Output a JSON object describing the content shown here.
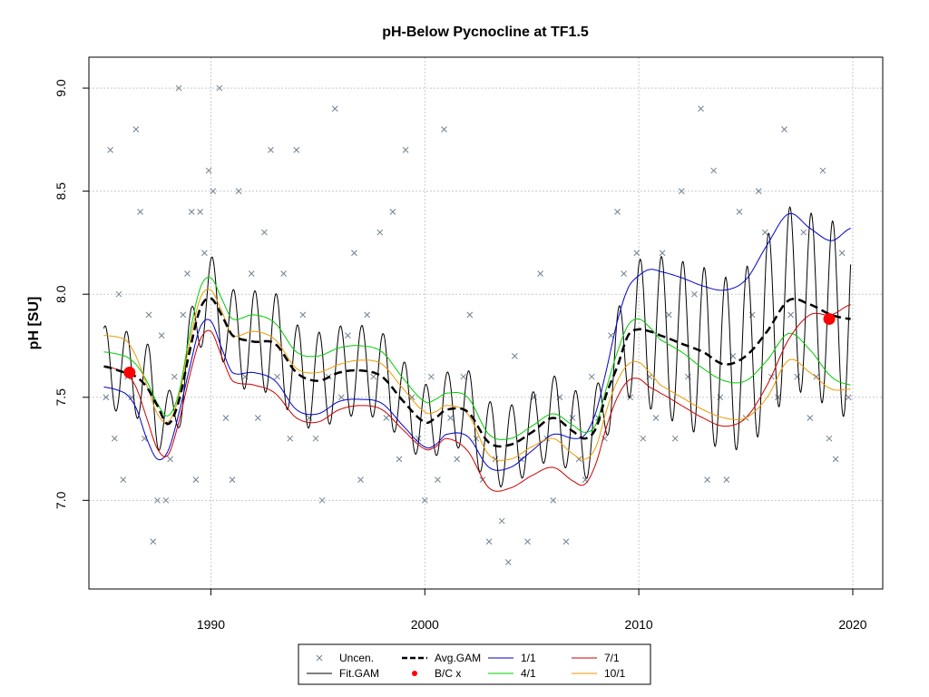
{
  "chart_data": {
    "type": "line",
    "title": "pH-Below Pycnocline at TF1.5",
    "xlabel": "",
    "ylabel": "pH [SU]",
    "xlim": [
      1984.3,
      2021.4
    ],
    "ylim": [
      6.57,
      9.15
    ],
    "x_ticks": [
      1990,
      2000,
      2010,
      2020
    ],
    "y_ticks": [
      7.0,
      7.5,
      8.0,
      8.5,
      9.0
    ],
    "x_tick_labels": [
      "1990",
      "2000",
      "2010",
      "2020"
    ],
    "y_tick_labels": [
      "7.0",
      "7.5",
      "8.0",
      "8.5",
      "9.0"
    ],
    "grid": true,
    "legend_position": "bottom-center",
    "legend": [
      {
        "label": "Uncen.",
        "symbol": "x",
        "color": "#708090"
      },
      {
        "label": "Fit.GAM",
        "symbol": "line",
        "color": "#000000"
      },
      {
        "label": "Avg.GAM",
        "symbol": "dashed",
        "color": "#000000"
      },
      {
        "label": "B/C x",
        "symbol": "point",
        "color": "#ff0000"
      },
      {
        "label": "1/1",
        "symbol": "line",
        "color": "#0000cd"
      },
      {
        "label": "4/1",
        "symbol": "line",
        "color": "#00cd00"
      },
      {
        "label": "7/1",
        "symbol": "line",
        "color": "#cd0000"
      },
      {
        "label": "10/1",
        "symbol": "line",
        "color": "#ee9a00"
      }
    ],
    "observations": {
      "label": "Uncen.",
      "x": [
        1985.1,
        1985.3,
        1985.5,
        1985.7,
        1985.9,
        1986.1,
        1986.3,
        1986.5,
        1986.7,
        1986.9,
        1987.1,
        1987.3,
        1987.5,
        1987.7,
        1987.9,
        1988.1,
        1988.3,
        1988.5,
        1988.7,
        1988.9,
        1989.1,
        1989.3,
        1989.5,
        1989.7,
        1989.9,
        1990.1,
        1990.4,
        1990.7,
        1991.0,
        1991.3,
        1991.6,
        1991.9,
        1992.2,
        1992.5,
        1992.8,
        1993.1,
        1993.4,
        1993.7,
        1994.0,
        1994.3,
        1994.6,
        1994.9,
        1995.2,
        1995.5,
        1995.8,
        1996.1,
        1996.4,
        1996.7,
        1997.0,
        1997.3,
        1997.6,
        1997.9,
        1998.2,
        1998.5,
        1998.8,
        1999.1,
        1999.4,
        1999.7,
        2000.0,
        2000.3,
        2000.6,
        2000.9,
        2001.2,
        2001.5,
        2001.8,
        2002.1,
        2002.4,
        2002.7,
        2003.0,
        2003.3,
        2003.6,
        2003.9,
        2004.2,
        2004.5,
        2004.8,
        2005.1,
        2005.4,
        2005.7,
        2006.0,
        2006.3,
        2006.6,
        2006.9,
        2007.2,
        2007.5,
        2007.8,
        2008.1,
        2008.4,
        2008.7,
        2009.0,
        2009.3,
        2009.6,
        2009.9,
        2010.2,
        2010.5,
        2010.8,
        2011.1,
        2011.4,
        2011.7,
        2012.0,
        2012.3,
        2012.6,
        2012.9,
        2013.2,
        2013.5,
        2013.8,
        2014.1,
        2014.4,
        2014.7,
        2015.0,
        2015.3,
        2015.6,
        2015.9,
        2016.2,
        2016.5,
        2016.8,
        2017.1,
        2017.4,
        2017.7,
        2018.0,
        2018.3,
        2018.6,
        2018.9,
        2019.2,
        2019.5,
        2019.8
      ],
      "y": [
        7.5,
        8.7,
        7.3,
        8.0,
        7.1,
        7.6,
        7.5,
        8.8,
        8.4,
        7.3,
        7.9,
        6.8,
        7.0,
        7.8,
        7.0,
        7.2,
        7.6,
        9.0,
        7.9,
        8.1,
        8.4,
        7.1,
        8.4,
        8.2,
        8.6,
        8.5,
        9.0,
        7.4,
        7.1,
        8.5,
        7.6,
        8.1,
        7.4,
        8.3,
        8.7,
        7.6,
        8.1,
        7.3,
        8.7,
        7.9,
        7.4,
        7.3,
        7.0,
        7.6,
        8.9,
        7.5,
        7.8,
        8.2,
        7.1,
        7.9,
        7.6,
        8.3,
        7.4,
        8.4,
        7.2,
        8.7,
        7.5,
        7.3,
        7.0,
        7.6,
        7.1,
        8.8,
        7.4,
        7.2,
        7.6,
        7.9,
        7.3,
        7.1,
        6.8,
        7.2,
        6.9,
        6.7,
        7.7,
        7.2,
        6.8,
        7.5,
        8.1,
        7.3,
        7.0,
        7.5,
        6.8,
        7.4,
        7.2,
        7.1,
        7.6,
        7.4,
        7.3,
        7.8,
        8.4,
        8.1,
        7.5,
        8.2,
        7.3,
        7.6,
        7.4,
        8.2,
        7.9,
        7.3,
        8.5,
        7.6,
        8.0,
        8.9,
        7.1,
        8.6,
        7.5,
        7.1,
        7.7,
        8.4,
        7.4,
        7.9,
        8.5,
        8.3,
        7.6,
        7.5,
        8.8,
        7.9,
        7.6,
        8.3,
        7.4,
        7.6,
        8.6,
        7.3,
        7.2,
        8.2,
        7.5
      ]
    },
    "series": [
      {
        "name": "Avg.GAM",
        "x": [
          1985.0,
          1986.0,
          1986.5,
          1987.0,
          1987.5,
          1988.0,
          1988.5,
          1989.0,
          1989.5,
          1990.0,
          1990.5,
          1991.0,
          1992.0,
          1993.0,
          1994.0,
          1995.0,
          1996.0,
          1997.0,
          1998.0,
          1999.0,
          2000.0,
          2000.5,
          2001.0,
          2002.0,
          2003.0,
          2004.0,
          2005.0,
          2006.0,
          2007.0,
          2007.5,
          2008.0,
          2008.5,
          2009.0,
          2009.5,
          2010.0,
          2010.5,
          2011.0,
          2012.0,
          2013.0,
          2014.0,
          2015.0,
          2016.0,
          2017.0,
          2018.0,
          2019.0,
          2019.9
        ],
        "y": [
          7.65,
          7.62,
          7.6,
          7.55,
          7.46,
          7.37,
          7.48,
          7.72,
          7.93,
          7.98,
          7.9,
          7.8,
          7.77,
          7.76,
          7.62,
          7.58,
          7.62,
          7.63,
          7.6,
          7.48,
          7.38,
          7.4,
          7.44,
          7.43,
          7.28,
          7.27,
          7.33,
          7.4,
          7.33,
          7.3,
          7.35,
          7.52,
          7.65,
          7.8,
          7.83,
          7.82,
          7.8,
          7.76,
          7.72,
          7.66,
          7.7,
          7.82,
          7.97,
          7.95,
          7.9,
          7.88
        ]
      },
      {
        "name": "1/1",
        "x": [
          1985.0,
          1986.0,
          1986.5,
          1987.0,
          1987.5,
          1988.0,
          1988.5,
          1989.0,
          1989.5,
          1990.0,
          1990.5,
          1991.0,
          1992.0,
          1993.0,
          1994.0,
          1995.0,
          1996.0,
          1997.0,
          1998.0,
          1999.0,
          2000.0,
          2000.5,
          2001.0,
          2002.0,
          2003.0,
          2004.0,
          2005.0,
          2006.0,
          2007.0,
          2007.5,
          2008.0,
          2008.5,
          2009.0,
          2009.5,
          2010.0,
          2010.5,
          2011.0,
          2012.0,
          2013.0,
          2014.0,
          2015.0,
          2016.0,
          2017.0,
          2018.0,
          2019.0,
          2019.9
        ],
        "y": [
          7.55,
          7.52,
          7.45,
          7.3,
          7.2,
          7.24,
          7.42,
          7.64,
          7.84,
          7.87,
          7.74,
          7.62,
          7.62,
          7.58,
          7.44,
          7.42,
          7.48,
          7.49,
          7.47,
          7.36,
          7.26,
          7.27,
          7.32,
          7.31,
          7.16,
          7.16,
          7.24,
          7.32,
          7.3,
          7.32,
          7.43,
          7.64,
          7.87,
          8.03,
          8.09,
          8.12,
          8.11,
          8.08,
          8.04,
          8.02,
          8.07,
          8.24,
          8.39,
          8.32,
          8.26,
          8.32
        ]
      },
      {
        "name": "4/1",
        "x": [
          1985.0,
          1986.0,
          1986.5,
          1987.0,
          1987.5,
          1988.0,
          1988.5,
          1989.0,
          1989.5,
          1990.0,
          1990.5,
          1991.0,
          1992.0,
          1993.0,
          1994.0,
          1995.0,
          1996.0,
          1997.0,
          1998.0,
          1999.0,
          2000.0,
          2000.5,
          2001.0,
          2002.0,
          2003.0,
          2004.0,
          2005.0,
          2006.0,
          2007.0,
          2007.5,
          2008.0,
          2008.5,
          2009.0,
          2009.5,
          2010.0,
          2010.5,
          2011.0,
          2012.0,
          2013.0,
          2014.0,
          2015.0,
          2016.0,
          2017.0,
          2018.0,
          2019.0,
          2019.9
        ],
        "y": [
          7.72,
          7.7,
          7.66,
          7.58,
          7.47,
          7.41,
          7.52,
          7.8,
          8.03,
          8.08,
          7.98,
          7.88,
          7.9,
          7.86,
          7.72,
          7.7,
          7.74,
          7.75,
          7.72,
          7.59,
          7.48,
          7.49,
          7.52,
          7.5,
          7.32,
          7.3,
          7.36,
          7.42,
          7.36,
          7.33,
          7.37,
          7.55,
          7.72,
          7.85,
          7.88,
          7.84,
          7.78,
          7.72,
          7.64,
          7.58,
          7.58,
          7.68,
          7.81,
          7.73,
          7.6,
          7.56
        ]
      },
      {
        "name": "7/1",
        "x": [
          1985.0,
          1986.0,
          1986.5,
          1987.0,
          1987.5,
          1988.0,
          1988.5,
          1989.0,
          1989.5,
          1990.0,
          1990.5,
          1991.0,
          1992.0,
          1993.0,
          1994.0,
          1995.0,
          1996.0,
          1997.0,
          1998.0,
          1999.0,
          2000.0,
          2000.5,
          2001.0,
          2002.0,
          2003.0,
          2004.0,
          2005.0,
          2006.0,
          2007.0,
          2007.5,
          2008.0,
          2008.5,
          2009.0,
          2009.5,
          2010.0,
          2010.5,
          2011.0,
          2012.0,
          2013.0,
          2014.0,
          2015.0,
          2016.0,
          2017.0,
          2018.0,
          2019.0,
          2019.9
        ],
        "y": [
          7.65,
          7.62,
          7.55,
          7.4,
          7.25,
          7.22,
          7.38,
          7.6,
          7.78,
          7.82,
          7.7,
          7.58,
          7.56,
          7.52,
          7.4,
          7.38,
          7.44,
          7.46,
          7.44,
          7.34,
          7.25,
          7.26,
          7.3,
          7.24,
          7.06,
          7.06,
          7.12,
          7.16,
          7.09,
          7.08,
          7.18,
          7.36,
          7.5,
          7.58,
          7.59,
          7.55,
          7.52,
          7.46,
          7.4,
          7.36,
          7.4,
          7.56,
          7.78,
          7.9,
          7.9,
          7.95
        ]
      },
      {
        "name": "10/1",
        "x": [
          1985.0,
          1986.0,
          1986.5,
          1987.0,
          1987.5,
          1988.0,
          1988.5,
          1989.0,
          1989.5,
          1990.0,
          1990.5,
          1991.0,
          1992.0,
          1993.0,
          1994.0,
          1995.0,
          1996.0,
          1997.0,
          1998.0,
          1999.0,
          2000.0,
          2000.5,
          2001.0,
          2002.0,
          2003.0,
          2004.0,
          2005.0,
          2006.0,
          2007.0,
          2007.5,
          2008.0,
          2008.5,
          2009.0,
          2009.5,
          2010.0,
          2010.5,
          2011.0,
          2012.0,
          2013.0,
          2014.0,
          2015.0,
          2016.0,
          2017.0,
          2018.0,
          2019.0,
          2019.9
        ],
        "y": [
          7.8,
          7.78,
          7.7,
          7.56,
          7.42,
          7.38,
          7.5,
          7.76,
          7.98,
          8.02,
          7.92,
          7.8,
          7.82,
          7.78,
          7.64,
          7.62,
          7.66,
          7.68,
          7.66,
          7.54,
          7.43,
          7.43,
          7.46,
          7.42,
          7.22,
          7.2,
          7.26,
          7.3,
          7.22,
          7.2,
          7.26,
          7.44,
          7.58,
          7.66,
          7.67,
          7.62,
          7.56,
          7.5,
          7.44,
          7.4,
          7.4,
          7.5,
          7.68,
          7.62,
          7.54,
          7.54
        ]
      }
    ],
    "bc_points": {
      "name": "B/C x",
      "x": [
        1986.2,
        2018.9
      ],
      "y": [
        7.62,
        7.88
      ]
    }
  }
}
